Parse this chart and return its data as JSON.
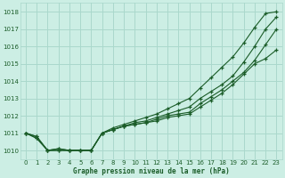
{
  "xlabel": "Graphe pression niveau de la mer (hPa)",
  "background_color": "#cceee4",
  "grid_color": "#aad8cc",
  "line_color": "#1a5c28",
  "xlim": [
    -0.5,
    23.5
  ],
  "ylim": [
    1009.5,
    1018.5
  ],
  "yticks": [
    1010,
    1011,
    1012,
    1013,
    1014,
    1015,
    1016,
    1017,
    1018
  ],
  "xticks": [
    0,
    1,
    2,
    3,
    4,
    5,
    6,
    7,
    8,
    9,
    10,
    11,
    12,
    13,
    14,
    15,
    16,
    17,
    18,
    19,
    20,
    21,
    22,
    23
  ],
  "series": [
    [
      1011.0,
      1010.8,
      1010.0,
      1010.1,
      1010.0,
      1010.0,
      1010.0,
      1011.0,
      1011.2,
      1011.4,
      1011.5,
      1011.6,
      1011.7,
      1011.9,
      1012.0,
      1012.1,
      1012.5,
      1012.9,
      1013.3,
      1013.8,
      1014.4,
      1015.0,
      1015.3,
      1015.8
    ],
    [
      1011.0,
      1010.8,
      1010.0,
      1010.1,
      1010.0,
      1010.0,
      1010.0,
      1011.0,
      1011.2,
      1011.4,
      1011.5,
      1011.6,
      1011.8,
      1012.0,
      1012.1,
      1012.2,
      1012.7,
      1013.1,
      1013.5,
      1014.0,
      1014.5,
      1015.2,
      1016.1,
      1017.0
    ],
    [
      1011.0,
      1010.7,
      1010.0,
      1010.0,
      1010.0,
      1010.0,
      1010.0,
      1011.0,
      1011.2,
      1011.4,
      1011.6,
      1011.7,
      1011.9,
      1012.1,
      1012.3,
      1012.5,
      1013.0,
      1013.4,
      1013.8,
      1014.3,
      1015.1,
      1016.0,
      1017.0,
      1017.7
    ],
    [
      1011.0,
      1010.7,
      1010.0,
      1010.0,
      1010.0,
      1010.0,
      1010.0,
      1011.0,
      1011.3,
      1011.5,
      1011.7,
      1011.9,
      1012.1,
      1012.4,
      1012.7,
      1013.0,
      1013.6,
      1014.2,
      1014.8,
      1015.4,
      1016.2,
      1017.1,
      1017.9,
      1018.0
    ]
  ]
}
